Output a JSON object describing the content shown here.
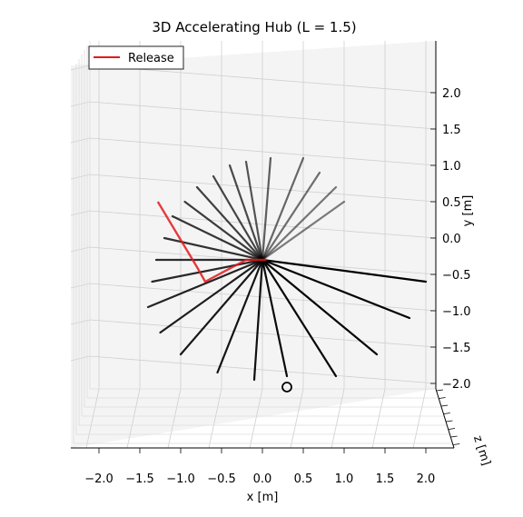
{
  "chart_data": {
    "type": "line",
    "title": "3D Accelerating Hub (L = 1.5)",
    "xlabel": "x [m]",
    "ylabel": "y [m]",
    "zlabel": "z [m]",
    "xlim": [
      -2.3,
      2.3
    ],
    "ylim": [
      -2.3,
      2.3
    ],
    "x_ticks": [
      "−2.0",
      "−1.5",
      "−1.0",
      "−0.5",
      "0.0",
      "0.5",
      "1.0",
      "1.5",
      "2.0"
    ],
    "y_ticks": [
      "2.0",
      "1.5",
      "1.0",
      "0.5",
      "0.0",
      "−0.5",
      "−1.0",
      "−1.5",
      "−2.0"
    ],
    "grid": true,
    "legend": {
      "position": "top-left",
      "entries": [
        {
          "label": "Release",
          "color": "#e31a1c"
        }
      ]
    },
    "colors": {
      "snapshot": "#000000",
      "release": "#e31a1c"
    },
    "snapshots": [
      {
        "hub": [
          0.0,
          -0.3
        ],
        "tip": [
          1.0,
          0.5
        ],
        "opacity": 0.5
      },
      {
        "hub": [
          0.0,
          -0.3
        ],
        "tip": [
          0.9,
          0.7
        ],
        "opacity": 0.52
      },
      {
        "hub": [
          0.0,
          -0.3
        ],
        "tip": [
          0.7,
          0.9
        ],
        "opacity": 0.55
      },
      {
        "hub": [
          0.0,
          -0.3
        ],
        "tip": [
          0.5,
          1.1
        ],
        "opacity": 0.58
      },
      {
        "hub": [
          0.0,
          -0.3
        ],
        "tip": [
          0.1,
          1.1
        ],
        "opacity": 0.62
      },
      {
        "hub": [
          0.0,
          -0.3
        ],
        "tip": [
          -0.2,
          1.05
        ],
        "opacity": 0.66
      },
      {
        "hub": [
          0.0,
          -0.3
        ],
        "tip": [
          -0.4,
          1.0
        ],
        "opacity": 0.7
      },
      {
        "hub": [
          0.0,
          -0.3
        ],
        "tip": [
          -0.6,
          0.85
        ],
        "opacity": 0.72
      },
      {
        "hub": [
          0.0,
          -0.3
        ],
        "tip": [
          -0.8,
          0.7
        ],
        "opacity": 0.74
      },
      {
        "hub": [
          0.0,
          -0.3
        ],
        "tip": [
          -0.95,
          0.5
        ],
        "opacity": 0.76
      },
      {
        "hub": [
          0.0,
          -0.3
        ],
        "tip": [
          -1.1,
          0.3
        ],
        "opacity": 0.78
      },
      {
        "hub": [
          0.0,
          -0.3
        ],
        "tip": [
          -1.2,
          0.0
        ],
        "opacity": 0.8
      },
      {
        "hub": [
          0.0,
          -0.3
        ],
        "tip": [
          -1.3,
          -0.3
        ],
        "opacity": 0.82
      },
      {
        "hub": [
          0.0,
          -0.3
        ],
        "tip": [
          -1.35,
          -0.6
        ],
        "opacity": 0.84
      },
      {
        "hub": [
          0.0,
          -0.3
        ],
        "tip": [
          -1.4,
          -0.95
        ],
        "opacity": 0.86
      },
      {
        "hub": [
          0.0,
          -0.3
        ],
        "tip": [
          -1.25,
          -1.3
        ],
        "opacity": 0.88
      },
      {
        "hub": [
          0.0,
          -0.3
        ],
        "tip": [
          -1.0,
          -1.6
        ],
        "opacity": 0.9
      },
      {
        "hub": [
          0.0,
          -0.3
        ],
        "tip": [
          -0.55,
          -1.85
        ],
        "opacity": 0.92
      },
      {
        "hub": [
          0.0,
          -0.3
        ],
        "tip": [
          -0.1,
          -1.95
        ],
        "opacity": 0.94
      },
      {
        "hub": [
          0.0,
          -0.3
        ],
        "tip": [
          0.3,
          -1.9
        ],
        "opacity": 0.96
      },
      {
        "hub": [
          0.0,
          -0.3
        ],
        "tip": [
          0.9,
          -1.9
        ],
        "opacity": 0.97
      },
      {
        "hub": [
          0.0,
          -0.3
        ],
        "tip": [
          1.4,
          -1.6
        ],
        "opacity": 0.98
      },
      {
        "hub": [
          0.0,
          -0.3
        ],
        "tip": [
          1.8,
          -1.1
        ],
        "opacity": 0.99
      },
      {
        "hub": [
          0.0,
          -0.3
        ],
        "tip": [
          2.0,
          -0.6
        ],
        "opacity": 1.0
      }
    ],
    "release": {
      "curve": [
        [
          -1.28,
          0.5
        ],
        [
          -0.8,
          -0.4
        ],
        [
          -0.7,
          -0.6
        ],
        [
          -0.2,
          -0.3
        ],
        [
          0.05,
          -0.3
        ]
      ]
    },
    "final_marker": [
      0.3,
      -2.05
    ]
  }
}
